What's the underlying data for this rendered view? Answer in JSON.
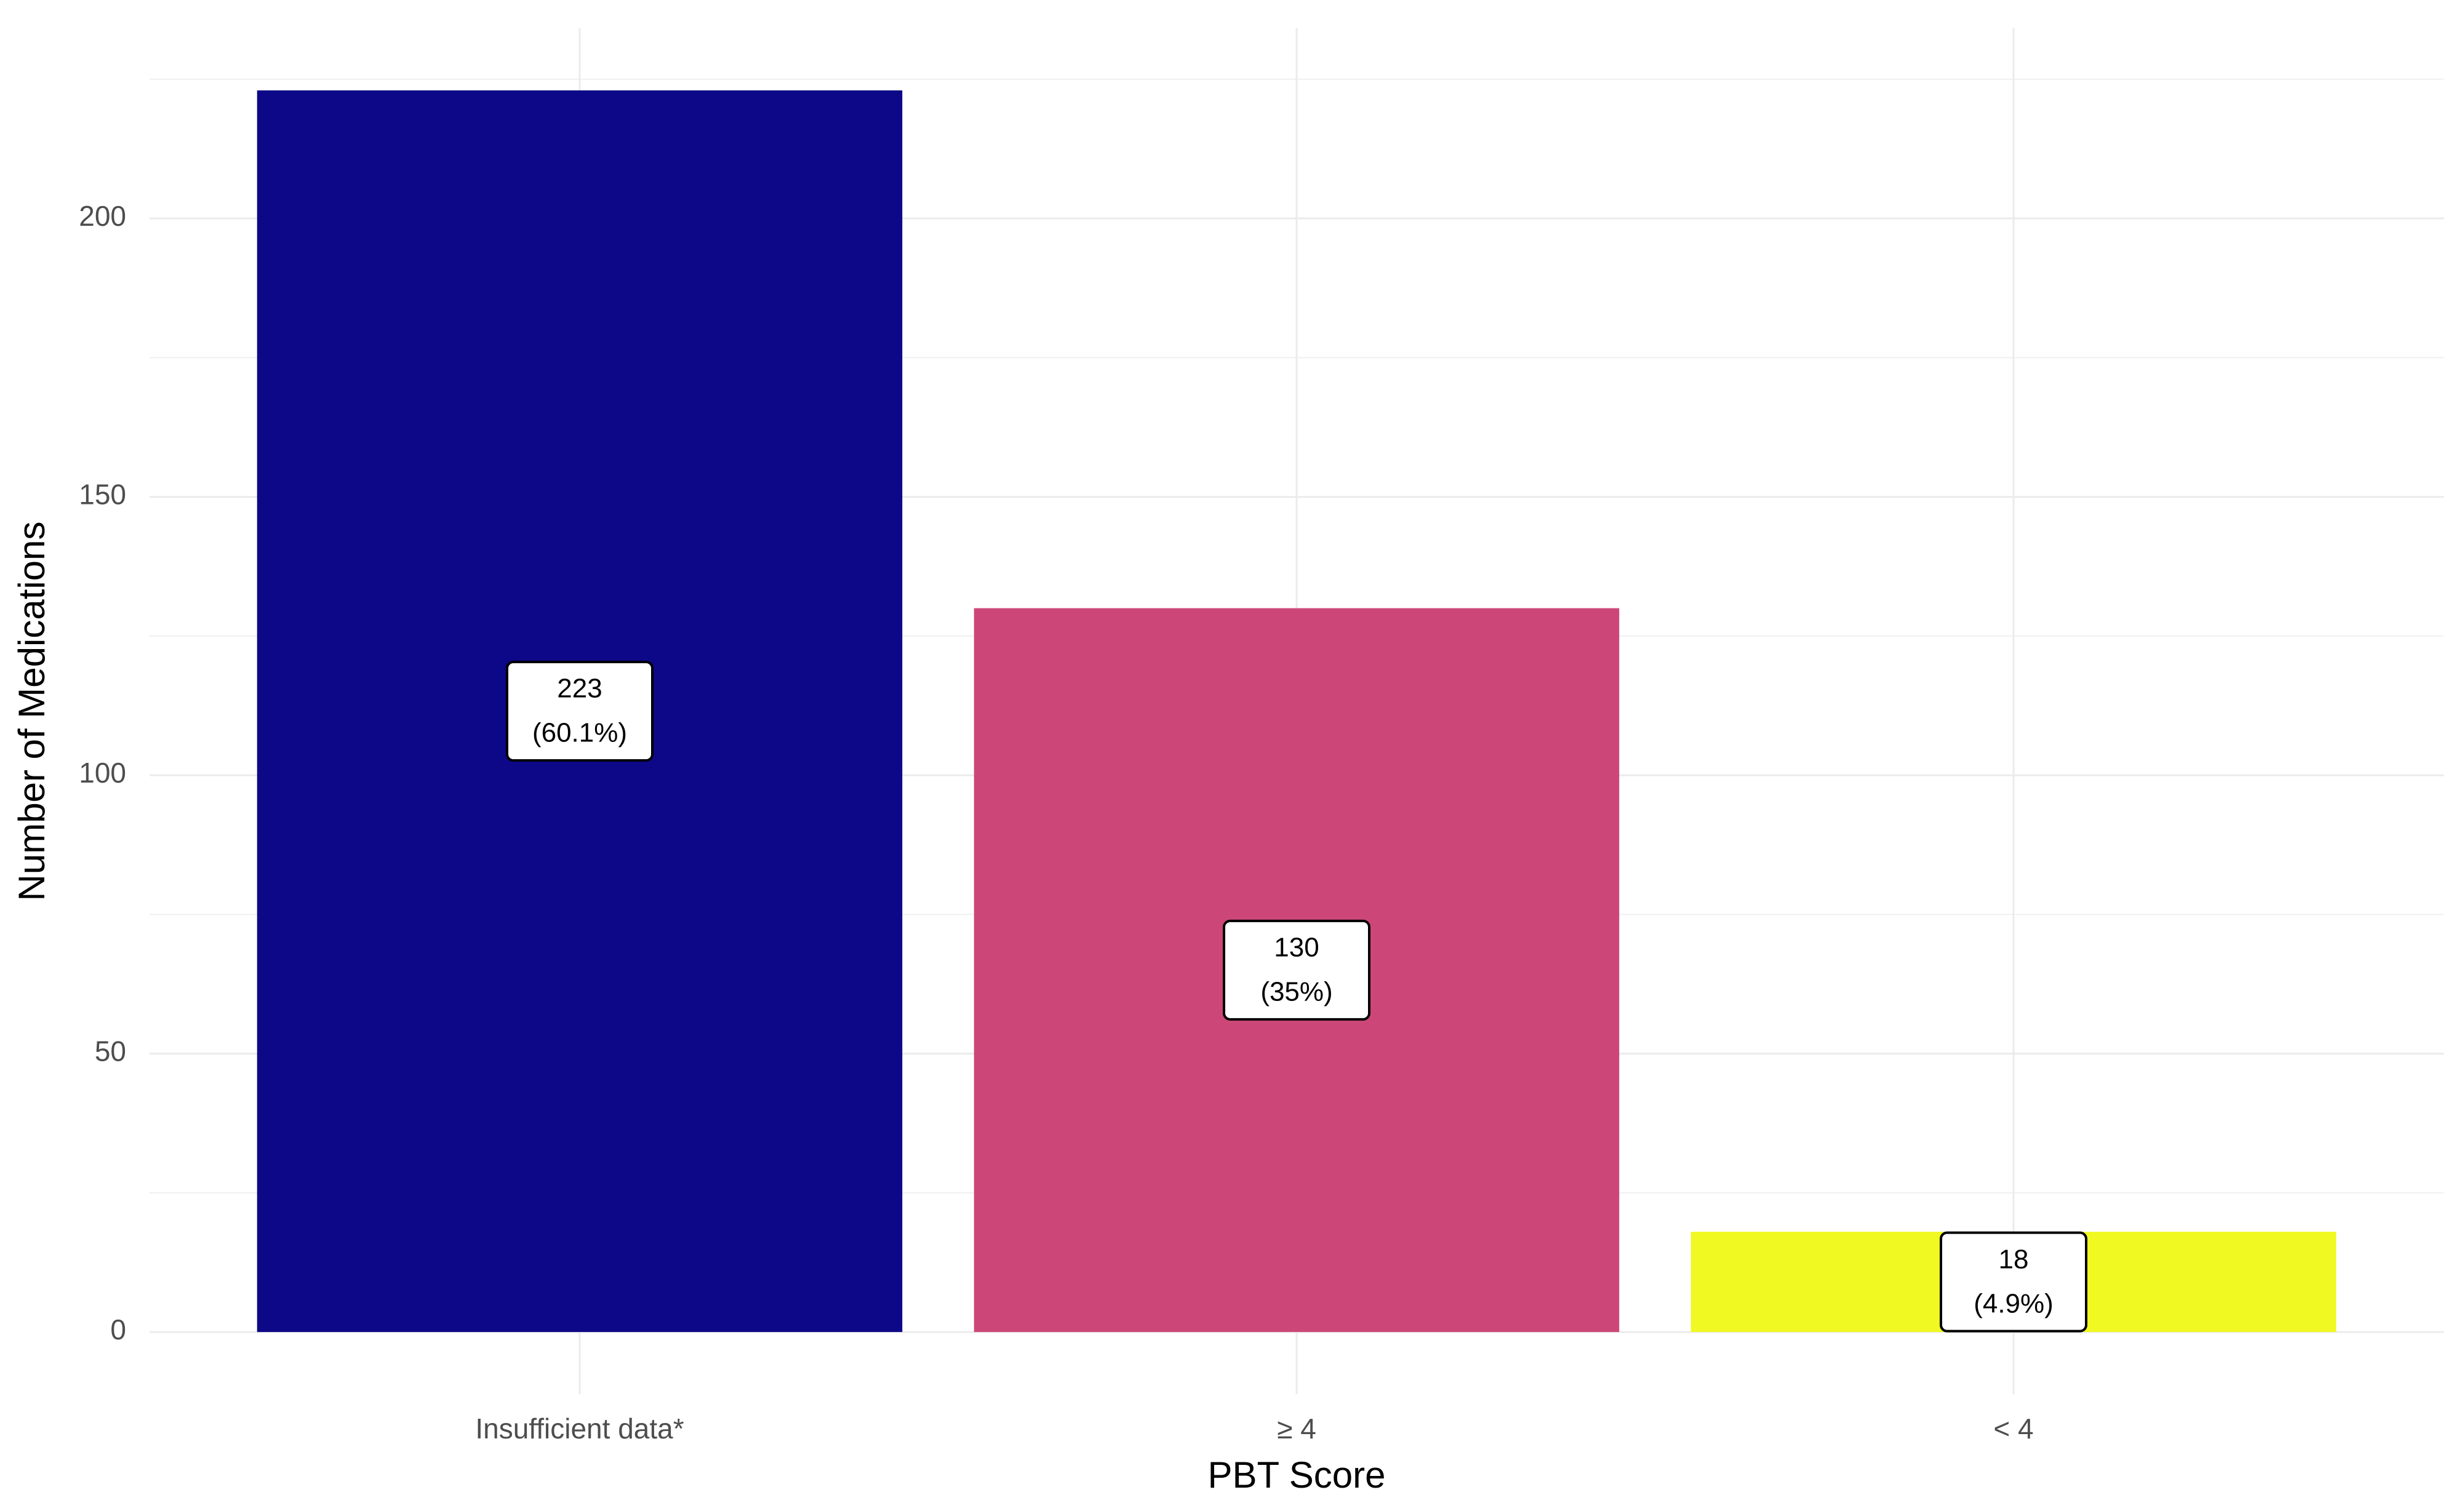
{
  "chart_data": {
    "type": "bar",
    "x_label": "PBT Score",
    "y_label": "Number of Medications",
    "categories": [
      "Insufficient data*",
      "≥ 4",
      "< 4"
    ],
    "values": [
      223,
      130,
      18
    ],
    "value_labels": [
      [
        "223",
        "(60.1%)"
      ],
      [
        "130",
        "(35%)"
      ],
      [
        "18",
        "(4.9%)"
      ]
    ],
    "colors": [
      "#0d0887",
      "#cc4778",
      "#f0f921"
    ],
    "ylim": [
      -11.15,
      234.15
    ],
    "yticks": [
      0,
      50,
      100,
      150,
      200
    ],
    "y_minor_ticks": [
      25,
      75,
      125,
      175,
      225
    ],
    "grid": true
  }
}
